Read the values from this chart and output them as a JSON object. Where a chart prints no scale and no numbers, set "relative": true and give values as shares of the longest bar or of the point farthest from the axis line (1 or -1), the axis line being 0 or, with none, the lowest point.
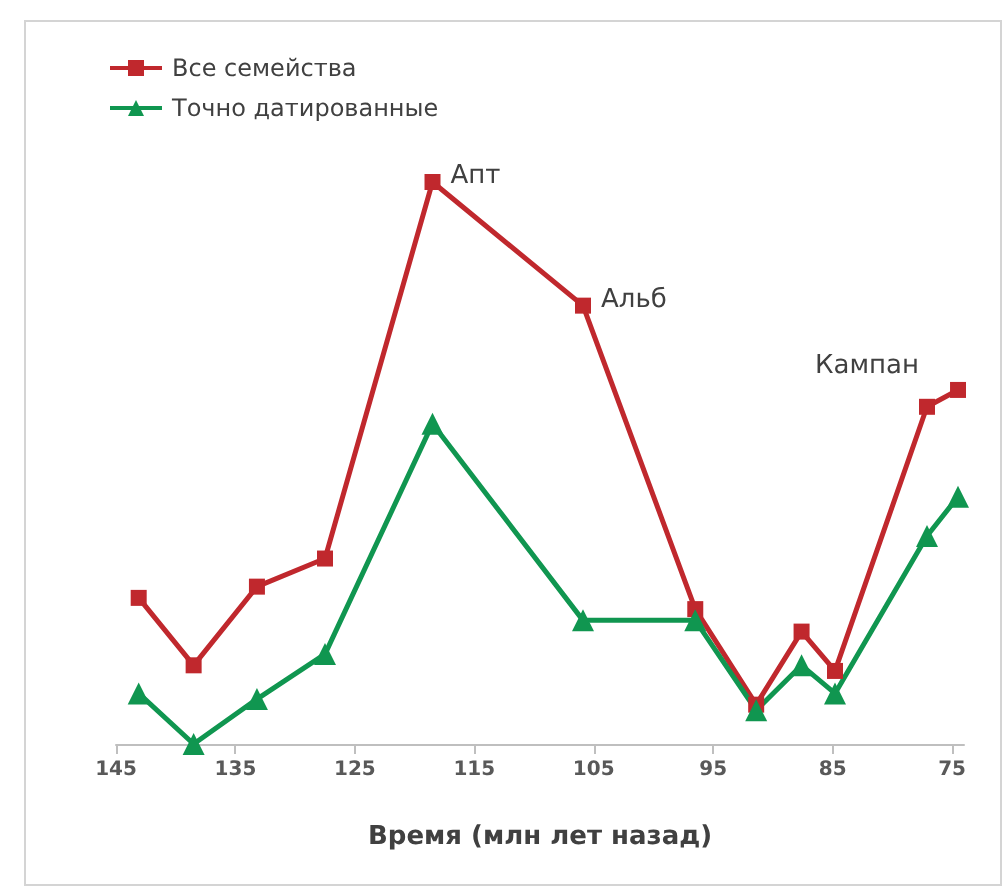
{
  "chart_data": {
    "type": "line",
    "relative": true,
    "xlabel": "Время (млн лет назад)",
    "xlim": [
      145,
      74
    ],
    "xticks": [
      145,
      135,
      125,
      115,
      105,
      95,
      85,
      75
    ],
    "x": [
      143.1,
      138.5,
      133.2,
      127.5,
      118.5,
      105.9,
      96.5,
      91.4,
      87.6,
      84.8,
      77.1,
      74.5
    ],
    "series": [
      {
        "name": "Все семейства",
        "color": "#c0282d",
        "marker": "square",
        "values": [
          0.26,
          0.14,
          0.28,
          0.33,
          1.0,
          0.78,
          0.24,
          0.07,
          0.2,
          0.13,
          0.6,
          0.63
        ]
      },
      {
        "name": "Точно датированные",
        "color": "#109650",
        "marker": "triangle",
        "values": [
          0.09,
          0.0,
          0.08,
          0.16,
          0.57,
          0.22,
          0.22,
          0.06,
          0.14,
          0.09,
          0.37,
          0.44
        ]
      }
    ],
    "annotations": [
      {
        "text": "Апт",
        "x": 118.5,
        "y": 1.0
      },
      {
        "text": "Альб",
        "x": 105.9,
        "y": 0.78
      },
      {
        "text": "Кампан",
        "x": 77.1,
        "y": 0.6
      }
    ],
    "legend": "top left",
    "grid": false,
    "line_style": "solid"
  }
}
